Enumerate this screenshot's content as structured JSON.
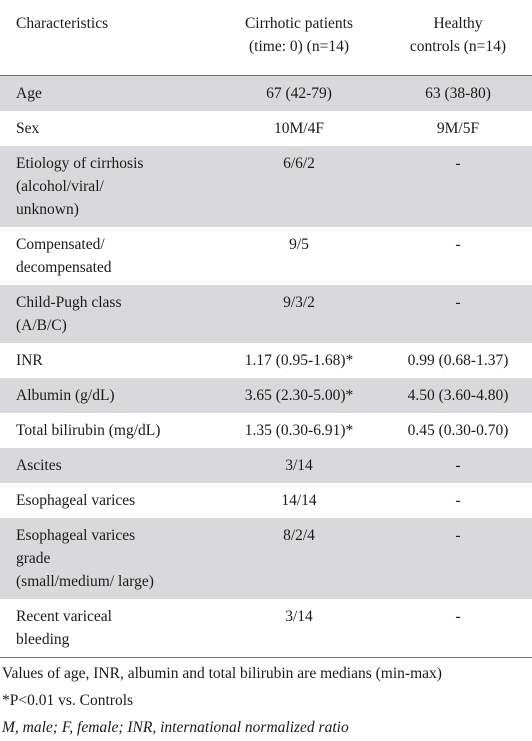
{
  "header": {
    "col1": "Characteristics",
    "col2_line1": "Cirrhotic patients",
    "col2_line2": "(time: 0)  (n=14)",
    "col3_line1": "Healthy",
    "col3_line2": "controls  (n=14)"
  },
  "rows": [
    {
      "label": [
        "Age"
      ],
      "cirrhotic": "67 (42-79)",
      "controls": "63 (38-80)"
    },
    {
      "label": [
        "Sex"
      ],
      "cirrhotic": "10M/4F",
      "controls": "9M/5F"
    },
    {
      "label": [
        "Etiology of cirrhosis",
        "(alcohol/viral/",
        "unknown)"
      ],
      "cirrhotic": "6/6/2",
      "controls": "-"
    },
    {
      "label": [
        "Compensated/",
        "decompensated"
      ],
      "cirrhotic": "9/5",
      "controls": "-"
    },
    {
      "label": [
        "Child-Pugh class",
        "(A/B/C)"
      ],
      "cirrhotic": "9/3/2",
      "controls": "-"
    },
    {
      "label": [
        "INR"
      ],
      "cirrhotic": "1.17 (0.95-1.68)*",
      "controls": "0.99 (0.68-1.37)"
    },
    {
      "label": [
        "Albumin (g/dL)"
      ],
      "cirrhotic": "3.65 (2.30-5.00)*",
      "controls": "4.50 (3.60-4.80)"
    },
    {
      "label": [
        "Total bilirubin (mg/dL)"
      ],
      "cirrhotic": "1.35 (0.30-6.91)*",
      "controls": "0.45 (0.30-0.70)"
    },
    {
      "label": [
        "Ascites"
      ],
      "cirrhotic": "3/14",
      "controls": "-"
    },
    {
      "label": [
        "Esophageal varices"
      ],
      "cirrhotic": "14/14",
      "controls": "-"
    },
    {
      "label": [
        "Esophageal varices",
        "grade",
        "(small/medium/ large)"
      ],
      "cirrhotic": "8/2/4",
      "controls": "-"
    },
    {
      "label": [
        "Recent variceal",
        "bleeding"
      ],
      "cirrhotic": "3/14",
      "controls": "-"
    }
  ],
  "footnotes": {
    "note1": "Values of age, INR, albumin and total bilirubin are medians (min-max)",
    "note2": "*P<0.01 vs. Controls",
    "note3": "M, male; F, female; INR, international normalized ratio"
  }
}
